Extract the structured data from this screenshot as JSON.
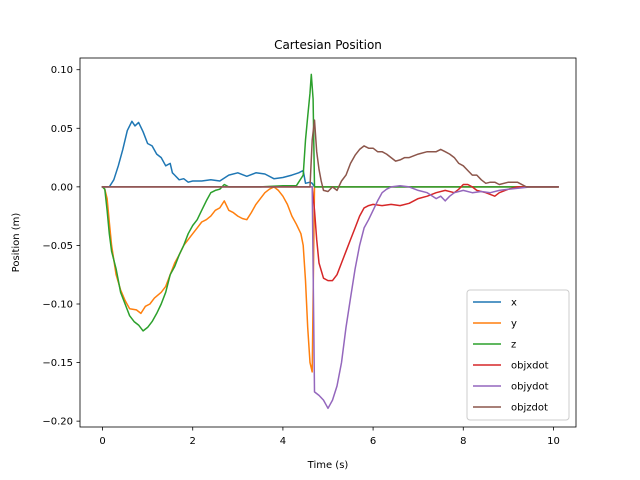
{
  "chart_data": {
    "type": "line",
    "title": "Cartesian Position",
    "xlabel": "Time (s)",
    "ylabel": "Position (m)",
    "xlim": [
      -0.5,
      10.5
    ],
    "ylim": [
      -0.205,
      0.11
    ],
    "xticks": [
      0,
      2,
      4,
      6,
      8,
      10
    ],
    "xtick_labels": [
      "0",
      "2",
      "4",
      "6",
      "8",
      "10"
    ],
    "yticks": [
      0.1,
      0.05,
      0.0,
      -0.05,
      -0.1,
      -0.15,
      -0.2
    ],
    "ytick_labels": [
      "0.10",
      "0.05",
      "0.00",
      "−0.05",
      "−0.10",
      "−0.15",
      "−0.20"
    ],
    "grid": false,
    "legend_position": "lower-right",
    "series": [
      {
        "name": "x",
        "color": "#1f77b4",
        "points": [
          [
            0,
            0
          ],
          [
            0.15,
            0
          ],
          [
            0.25,
            0.006
          ],
          [
            0.35,
            0.018
          ],
          [
            0.45,
            0.032
          ],
          [
            0.55,
            0.048
          ],
          [
            0.65,
            0.056
          ],
          [
            0.72,
            0.052
          ],
          [
            0.8,
            0.055
          ],
          [
            0.9,
            0.047
          ],
          [
            1.0,
            0.037
          ],
          [
            1.1,
            0.035
          ],
          [
            1.2,
            0.028
          ],
          [
            1.3,
            0.025
          ],
          [
            1.4,
            0.018
          ],
          [
            1.5,
            0.02
          ],
          [
            1.55,
            0.012
          ],
          [
            1.6,
            0.01
          ],
          [
            1.7,
            0.006
          ],
          [
            1.8,
            0.007
          ],
          [
            1.9,
            0.004
          ],
          [
            2.0,
            0.005
          ],
          [
            2.2,
            0.005
          ],
          [
            2.4,
            0.006
          ],
          [
            2.6,
            0.005
          ],
          [
            2.8,
            0.01
          ],
          [
            3.0,
            0.012
          ],
          [
            3.2,
            0.009
          ],
          [
            3.4,
            0.012
          ],
          [
            3.6,
            0.011
          ],
          [
            3.8,
            0.007
          ],
          [
            4.0,
            0.008
          ],
          [
            4.2,
            0.01
          ],
          [
            4.35,
            0.012
          ],
          [
            4.45,
            0.014
          ],
          [
            4.5,
            0.003
          ],
          [
            4.6,
            0.004
          ],
          [
            4.65,
            0.003
          ],
          [
            4.7,
            0
          ],
          [
            5.0,
            0
          ],
          [
            6.0,
            0
          ],
          [
            8.0,
            0
          ],
          [
            10.1,
            0
          ]
        ]
      },
      {
        "name": "y",
        "color": "#ff7f0e",
        "points": [
          [
            0,
            0
          ],
          [
            0.05,
            -0.002
          ],
          [
            0.1,
            -0.01
          ],
          [
            0.15,
            -0.03
          ],
          [
            0.2,
            -0.05
          ],
          [
            0.3,
            -0.075
          ],
          [
            0.4,
            -0.088
          ],
          [
            0.5,
            -0.097
          ],
          [
            0.6,
            -0.104
          ],
          [
            0.75,
            -0.105
          ],
          [
            0.85,
            -0.108
          ],
          [
            0.95,
            -0.102
          ],
          [
            1.05,
            -0.1
          ],
          [
            1.15,
            -0.095
          ],
          [
            1.3,
            -0.09
          ],
          [
            1.4,
            -0.085
          ],
          [
            1.5,
            -0.075
          ],
          [
            1.6,
            -0.065
          ],
          [
            1.7,
            -0.058
          ],
          [
            1.8,
            -0.05
          ],
          [
            1.9,
            -0.045
          ],
          [
            2.0,
            -0.04
          ],
          [
            2.1,
            -0.035
          ],
          [
            2.2,
            -0.03
          ],
          [
            2.3,
            -0.028
          ],
          [
            2.4,
            -0.025
          ],
          [
            2.5,
            -0.02
          ],
          [
            2.6,
            -0.018
          ],
          [
            2.7,
            -0.012
          ],
          [
            2.8,
            -0.02
          ],
          [
            2.9,
            -0.022
          ],
          [
            3.0,
            -0.025
          ],
          [
            3.1,
            -0.027
          ],
          [
            3.2,
            -0.028
          ],
          [
            3.3,
            -0.022
          ],
          [
            3.4,
            -0.015
          ],
          [
            3.5,
            -0.01
          ],
          [
            3.6,
            -0.005
          ],
          [
            3.7,
            -0.002
          ],
          [
            3.8,
            0
          ],
          [
            3.9,
            -0.003
          ],
          [
            4.0,
            -0.008
          ],
          [
            4.1,
            -0.015
          ],
          [
            4.2,
            -0.025
          ],
          [
            4.3,
            -0.032
          ],
          [
            4.4,
            -0.04
          ],
          [
            4.45,
            -0.05
          ],
          [
            4.5,
            -0.08
          ],
          [
            4.55,
            -0.12
          ],
          [
            4.6,
            -0.15
          ],
          [
            4.65,
            -0.158
          ],
          [
            4.7,
            0
          ],
          [
            5.0,
            0
          ],
          [
            6.0,
            0
          ],
          [
            8.0,
            0
          ],
          [
            10.1,
            0
          ]
        ]
      },
      {
        "name": "z",
        "color": "#2ca02c",
        "points": [
          [
            0,
            0
          ],
          [
            0.05,
            -0.002
          ],
          [
            0.1,
            -0.02
          ],
          [
            0.15,
            -0.04
          ],
          [
            0.2,
            -0.055
          ],
          [
            0.3,
            -0.07
          ],
          [
            0.4,
            -0.09
          ],
          [
            0.5,
            -0.1
          ],
          [
            0.6,
            -0.11
          ],
          [
            0.7,
            -0.115
          ],
          [
            0.8,
            -0.118
          ],
          [
            0.9,
            -0.123
          ],
          [
            1.0,
            -0.12
          ],
          [
            1.1,
            -0.115
          ],
          [
            1.2,
            -0.108
          ],
          [
            1.3,
            -0.1
          ],
          [
            1.4,
            -0.09
          ],
          [
            1.5,
            -0.075
          ],
          [
            1.6,
            -0.068
          ],
          [
            1.7,
            -0.058
          ],
          [
            1.8,
            -0.05
          ],
          [
            1.9,
            -0.04
          ],
          [
            2.0,
            -0.033
          ],
          [
            2.1,
            -0.028
          ],
          [
            2.2,
            -0.02
          ],
          [
            2.3,
            -0.012
          ],
          [
            2.4,
            -0.005
          ],
          [
            2.5,
            -0.003
          ],
          [
            2.6,
            -0.002
          ],
          [
            2.7,
            0.002
          ],
          [
            2.8,
            0
          ],
          [
            3.0,
            0
          ],
          [
            3.5,
            0
          ],
          [
            4.0,
            0.001
          ],
          [
            4.3,
            0.001
          ],
          [
            4.45,
            0.01
          ],
          [
            4.5,
            0.04
          ],
          [
            4.55,
            0.06
          ],
          [
            4.6,
            0.08
          ],
          [
            4.63,
            0.096
          ],
          [
            4.67,
            0.075
          ],
          [
            4.7,
            0
          ],
          [
            5.0,
            0
          ],
          [
            6.0,
            0
          ],
          [
            8.0,
            0
          ],
          [
            10.1,
            0
          ]
        ]
      },
      {
        "name": "objxdot",
        "color": "#d62728",
        "points": [
          [
            0,
            0
          ],
          [
            4.6,
            0
          ],
          [
            4.65,
            0
          ],
          [
            4.7,
            -0.02
          ],
          [
            4.75,
            -0.045
          ],
          [
            4.8,
            -0.065
          ],
          [
            4.9,
            -0.078
          ],
          [
            5.0,
            -0.08
          ],
          [
            5.1,
            -0.08
          ],
          [
            5.2,
            -0.075
          ],
          [
            5.3,
            -0.065
          ],
          [
            5.4,
            -0.055
          ],
          [
            5.5,
            -0.045
          ],
          [
            5.6,
            -0.035
          ],
          [
            5.7,
            -0.025
          ],
          [
            5.8,
            -0.018
          ],
          [
            5.9,
            -0.016
          ],
          [
            6.0,
            -0.015
          ],
          [
            6.2,
            -0.016
          ],
          [
            6.4,
            -0.015
          ],
          [
            6.6,
            -0.016
          ],
          [
            6.8,
            -0.014
          ],
          [
            7.0,
            -0.01
          ],
          [
            7.2,
            -0.008
          ],
          [
            7.4,
            -0.005
          ],
          [
            7.6,
            -0.003
          ],
          [
            7.8,
            -0.005
          ],
          [
            7.9,
            -0.002
          ],
          [
            8.0,
            0.002
          ],
          [
            8.1,
            0.002
          ],
          [
            8.2,
            0
          ],
          [
            8.3,
            -0.003
          ],
          [
            8.5,
            -0.005
          ],
          [
            8.7,
            -0.008
          ],
          [
            8.8,
            -0.005
          ],
          [
            9.0,
            -0.002
          ],
          [
            9.2,
            0
          ],
          [
            9.5,
            0
          ],
          [
            10.1,
            0
          ]
        ]
      },
      {
        "name": "objydot",
        "color": "#9467bd",
        "points": [
          [
            0,
            0
          ],
          [
            4.6,
            0
          ],
          [
            4.65,
            0
          ],
          [
            4.7,
            -0.175
          ],
          [
            4.8,
            -0.178
          ],
          [
            4.9,
            -0.182
          ],
          [
            5.0,
            -0.189
          ],
          [
            5.1,
            -0.182
          ],
          [
            5.2,
            -0.17
          ],
          [
            5.3,
            -0.15
          ],
          [
            5.4,
            -0.12
          ],
          [
            5.5,
            -0.095
          ],
          [
            5.6,
            -0.07
          ],
          [
            5.7,
            -0.05
          ],
          [
            5.8,
            -0.035
          ],
          [
            5.9,
            -0.028
          ],
          [
            6.0,
            -0.02
          ],
          [
            6.1,
            -0.012
          ],
          [
            6.2,
            -0.005
          ],
          [
            6.3,
            -0.002
          ],
          [
            6.4,
            0
          ],
          [
            6.6,
            0.001
          ],
          [
            6.8,
            0
          ],
          [
            7.0,
            -0.003
          ],
          [
            7.2,
            -0.005
          ],
          [
            7.4,
            -0.01
          ],
          [
            7.5,
            -0.008
          ],
          [
            7.6,
            -0.012
          ],
          [
            7.7,
            -0.008
          ],
          [
            7.8,
            -0.005
          ],
          [
            8.0,
            -0.003
          ],
          [
            8.2,
            -0.005
          ],
          [
            8.4,
            -0.004
          ],
          [
            8.6,
            -0.005
          ],
          [
            8.8,
            -0.003
          ],
          [
            9.0,
            -0.002
          ],
          [
            9.5,
            0
          ],
          [
            10.1,
            0
          ]
        ]
      },
      {
        "name": "objzdot",
        "color": "#8c564b",
        "points": [
          [
            0,
            0
          ],
          [
            4.6,
            0
          ],
          [
            4.65,
            0.04
          ],
          [
            4.7,
            0.057
          ],
          [
            4.75,
            0.03
          ],
          [
            4.8,
            0.015
          ],
          [
            4.85,
            0.005
          ],
          [
            4.9,
            -0.003
          ],
          [
            5.0,
            -0.004
          ],
          [
            5.1,
            0
          ],
          [
            5.2,
            -0.003
          ],
          [
            5.3,
            0.005
          ],
          [
            5.4,
            0.01
          ],
          [
            5.5,
            0.02
          ],
          [
            5.6,
            0.027
          ],
          [
            5.7,
            0.032
          ],
          [
            5.8,
            0.035
          ],
          [
            5.9,
            0.033
          ],
          [
            6.0,
            0.033
          ],
          [
            6.1,
            0.03
          ],
          [
            6.2,
            0.03
          ],
          [
            6.3,
            0.028
          ],
          [
            6.4,
            0.025
          ],
          [
            6.5,
            0.022
          ],
          [
            6.6,
            0.023
          ],
          [
            6.7,
            0.025
          ],
          [
            6.8,
            0.025
          ],
          [
            7.0,
            0.028
          ],
          [
            7.2,
            0.03
          ],
          [
            7.4,
            0.03
          ],
          [
            7.5,
            0.032
          ],
          [
            7.6,
            0.03
          ],
          [
            7.7,
            0.028
          ],
          [
            7.8,
            0.025
          ],
          [
            7.9,
            0.02
          ],
          [
            8.0,
            0.018
          ],
          [
            8.1,
            0.014
          ],
          [
            8.2,
            0.01
          ],
          [
            8.3,
            0.01
          ],
          [
            8.4,
            0.006
          ],
          [
            8.5,
            0.003
          ],
          [
            8.6,
            0.004
          ],
          [
            8.7,
            0.004
          ],
          [
            8.8,
            0.002
          ],
          [
            9.0,
            0.004
          ],
          [
            9.2,
            0.004
          ],
          [
            9.4,
            0
          ],
          [
            9.5,
            0
          ],
          [
            10.1,
            0
          ]
        ]
      }
    ]
  }
}
